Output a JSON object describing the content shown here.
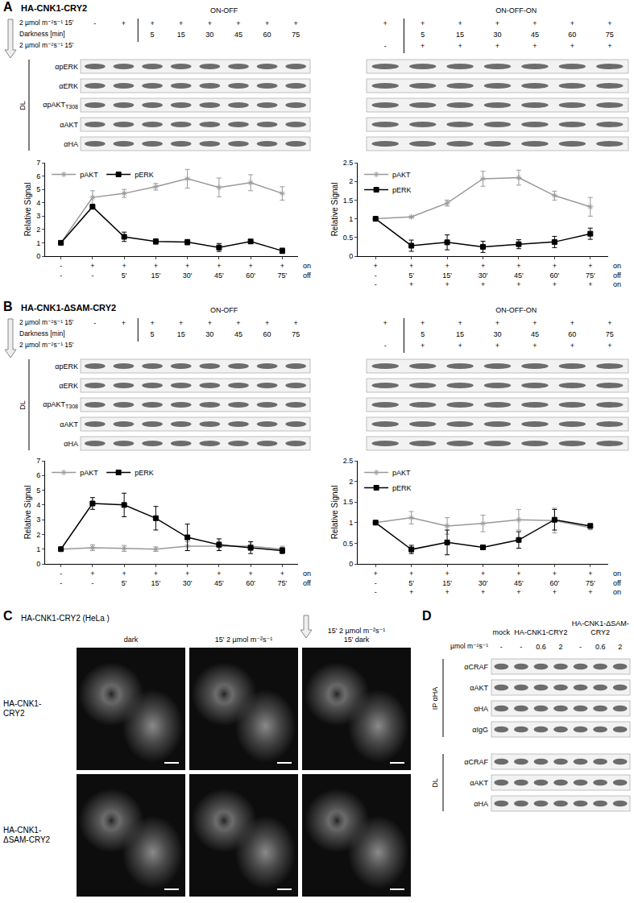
{
  "chart_data": [
    {
      "type": "line",
      "ylabel": "Relative Signal",
      "ylim": [
        0,
        7
      ],
      "yticks": [
        0,
        1,
        2,
        3,
        4,
        5,
        6,
        7
      ],
      "grid": false,
      "legend": "top left",
      "x_rows": [
        {
          "label": "on",
          "labels": [
            "-",
            "+",
            "+",
            "+",
            "+",
            "+",
            "+",
            "+"
          ]
        },
        {
          "label": "off",
          "labels": [
            "-",
            "-",
            "5'",
            "15'",
            "30'",
            "45'",
            "60'",
            "75'"
          ]
        }
      ],
      "series": [
        {
          "name": "pAKT",
          "color": "#999999",
          "marker": "asterisk",
          "values": [
            1,
            4.4,
            4.7,
            5.2,
            5.8,
            5.15,
            5.5,
            4.7
          ],
          "errors": [
            0,
            0.5,
            0.3,
            0.25,
            0.7,
            0.7,
            0.6,
            0.5
          ]
        },
        {
          "name": "pERK",
          "color": "#000000",
          "marker": "square",
          "values": [
            1,
            3.7,
            1.45,
            1.1,
            1.05,
            0.65,
            1.1,
            0.4
          ],
          "errors": [
            0,
            0.15,
            0.35,
            0.2,
            0.2,
            0.3,
            0.15,
            0.2
          ]
        }
      ]
    },
    {
      "type": "line",
      "ylabel": "Relative Signal",
      "ylim": [
        0,
        2.5
      ],
      "yticks": [
        0,
        0.5,
        1,
        1.5,
        2,
        2.5
      ],
      "grid": false,
      "legend": "top left",
      "x_rows": [
        {
          "label": "on",
          "labels": [
            "+",
            "+",
            "+",
            "+",
            "+",
            "+",
            "+"
          ]
        },
        {
          "label": "off",
          "labels": [
            "-",
            "5'",
            "15'",
            "30'",
            "45'",
            "60'",
            "75'"
          ]
        },
        {
          "label": "on",
          "labels": [
            "-",
            "+",
            "+",
            "+",
            "+",
            "+",
            "+"
          ]
        }
      ],
      "series": [
        {
          "name": "pAKT",
          "color": "#999999",
          "marker": "asterisk",
          "values": [
            1,
            1.05,
            1.42,
            2.07,
            2.1,
            1.62,
            1.32
          ],
          "errors": [
            0,
            0.02,
            0.08,
            0.2,
            0.2,
            0.12,
            0.25
          ]
        },
        {
          "name": "pERK",
          "color": "#000000",
          "marker": "square",
          "values": [
            1,
            0.28,
            0.37,
            0.25,
            0.32,
            0.38,
            0.6
          ],
          "errors": [
            0,
            0.15,
            0.2,
            0.15,
            0.12,
            0.15,
            0.15
          ]
        }
      ]
    },
    {
      "type": "line",
      "ylabel": "Relative Signal",
      "ylim": [
        0,
        7
      ],
      "yticks": [
        0,
        1,
        2,
        3,
        4,
        5,
        6,
        7
      ],
      "grid": false,
      "legend": "top left",
      "x_rows": [
        {
          "label": "on",
          "labels": [
            "-",
            "+",
            "+",
            "+",
            "+",
            "+",
            "+",
            "+"
          ]
        },
        {
          "label": "off",
          "labels": [
            "-",
            "-",
            "5'",
            "15'",
            "30'",
            "45'",
            "60'",
            "75'"
          ]
        }
      ],
      "series": [
        {
          "name": "pAKT",
          "color": "#999999",
          "marker": "asterisk",
          "values": [
            1,
            1.1,
            1.05,
            1.0,
            1.2,
            1.2,
            1.2,
            1.0
          ],
          "errors": [
            0,
            0.2,
            0.2,
            0.15,
            0.3,
            0.3,
            0.3,
            0.2
          ]
        },
        {
          "name": "pERK",
          "color": "#000000",
          "marker": "square",
          "values": [
            1,
            4.1,
            4.0,
            3.1,
            1.8,
            1.3,
            1.1,
            0.9
          ],
          "errors": [
            0,
            0.4,
            0.8,
            0.8,
            0.9,
            0.4,
            0.4,
            0.2
          ]
        }
      ]
    },
    {
      "type": "line",
      "ylabel": "Relative Signal",
      "ylim": [
        0,
        2.5
      ],
      "yticks": [
        0,
        0.5,
        1,
        1.5,
        2,
        2.5
      ],
      "grid": false,
      "legend": "top left",
      "x_rows": [
        {
          "label": "on",
          "labels": [
            "+",
            "+",
            "+",
            "+",
            "+",
            "+",
            "+"
          ]
        },
        {
          "label": "off",
          "labels": [
            "-",
            "5'",
            "15'",
            "30'",
            "45'",
            "60'",
            "75'"
          ]
        },
        {
          "label": "on",
          "labels": [
            "-",
            "+",
            "+",
            "+",
            "+",
            "+",
            "+"
          ]
        }
      ],
      "series": [
        {
          "name": "pAKT",
          "color": "#999999",
          "marker": "asterisk",
          "values": [
            1,
            1.12,
            0.92,
            0.98,
            1.07,
            1.05,
            0.88
          ],
          "errors": [
            0,
            0.15,
            0.2,
            0.2,
            0.25,
            0.3,
            0.05
          ]
        },
        {
          "name": "pERK",
          "color": "#000000",
          "marker": "square",
          "values": [
            1,
            0.35,
            0.52,
            0.4,
            0.58,
            1.07,
            0.92
          ],
          "errors": [
            0,
            0.1,
            0.3,
            0.05,
            0.2,
            0.25,
            0.05
          ]
        }
      ]
    }
  ],
  "panels": [
    {
      "label": "A",
      "title": "HA-CNK1-CRY2",
      "condition_labels": [
        "2 µmol m⁻²s⁻¹ 15'",
        "Darkness [min]",
        "2 µmol m⁻²s⁻¹ 15'"
      ],
      "group": "DL",
      "antibodies": [
        {
          "name": "αpERK"
        },
        {
          "name": "αERK"
        },
        {
          "name": "αpAKT",
          "sub": "T308"
        },
        {
          "name": "αAKT"
        },
        {
          "name": "αHA"
        }
      ],
      "blots": [
        {
          "header": "ON-OFF",
          "rows": [
            [
              "-",
              "+",
              "+",
              "+",
              "+",
              "+",
              "+",
              "+"
            ],
            [
              null,
              null,
              "5",
              "15",
              "30",
              "45",
              "60",
              "75"
            ]
          ]
        },
        {
          "header": "ON-OFF-ON",
          "rows": [
            [
              "+",
              "+",
              "+",
              "+",
              "+",
              "+",
              "+"
            ],
            [
              null,
              "5",
              "15",
              "30",
              "45",
              "60",
              "75"
            ],
            [
              "-",
              "+",
              "+",
              "+",
              "+",
              "+",
              "+"
            ]
          ]
        }
      ]
    },
    {
      "label": "B",
      "title": "HA-CNK1-ΔSAM-CRY2",
      "condition_labels": [
        "2 µmol m⁻²s⁻¹ 15'",
        "Darkness [min]",
        "2 µmol m⁻²s⁻¹ 15'"
      ],
      "group": "DL",
      "antibodies": [
        {
          "name": "αpERK"
        },
        {
          "name": "αERK"
        },
        {
          "name": "αpAKT",
          "sub": "T308"
        },
        {
          "name": "αAKT"
        },
        {
          "name": "αHA"
        }
      ],
      "blots": [
        {
          "header": "ON-OFF",
          "rows": [
            [
              "-",
              "+",
              "+",
              "+",
              "+",
              "+",
              "+",
              "+"
            ],
            [
              null,
              null,
              "5",
              "15",
              "30",
              "45",
              "60",
              "75"
            ]
          ]
        },
        {
          "header": "ON-OFF-ON",
          "rows": [
            [
              "+",
              "+",
              "+",
              "+",
              "+",
              "+",
              "+"
            ],
            [
              null,
              "5",
              "15",
              "30",
              "45",
              "60",
              "75"
            ],
            [
              "-",
              "+",
              "+",
              "+",
              "+",
              "+",
              "+"
            ]
          ]
        }
      ]
    },
    {
      "label": "C",
      "title": "HA-CNK1-CRY2 (HeLa )",
      "columns": [
        [
          "dark"
        ],
        [
          "15' 2 µmol m⁻²s⁻¹"
        ],
        [
          "15' 2 µmol m⁻²s⁻¹",
          "15' dark"
        ]
      ],
      "rows": [
        "HA-CNK1-CRY2",
        "HA-CNK1-ΔSAM-CRY2"
      ]
    },
    {
      "label": "D",
      "condition_label": "µmol m⁻²s⁻¹",
      "columns": [
        {
          "label": "mock",
          "values": [
            "-"
          ]
        },
        {
          "label": "HA-CNK1-CRY2",
          "values": [
            "-",
            "0.6",
            "2"
          ]
        },
        {
          "label": "HA-CNK1-ΔSAM-CRY2",
          "values": [
            "-",
            "0.6",
            "2"
          ]
        }
      ],
      "blot_groups": [
        {
          "label": "IP αHA",
          "antibodies": [
            "αCRAF",
            "αAKT",
            "αHA",
            "αIgG"
          ]
        },
        {
          "label": "DL",
          "antibodies": [
            "αCRAF",
            "αAKT",
            "αHA"
          ]
        }
      ]
    }
  ]
}
